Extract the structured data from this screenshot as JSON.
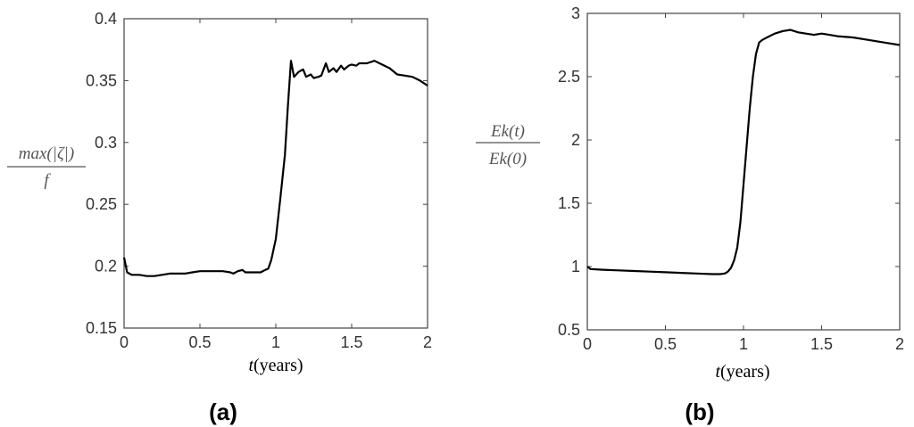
{
  "chart_data": [
    {
      "type": "line",
      "panel_label": "(a)",
      "title": "",
      "xlabel": {
        "symbol": "t",
        "unit": "(years)"
      },
      "ylabel": {
        "numerator": "max(|ζ|)",
        "denominator": "f"
      },
      "xlim": [
        0,
        2
      ],
      "ylim": [
        0.15,
        0.4
      ],
      "xticks": [
        0,
        0.5,
        1,
        1.5,
        2
      ],
      "xtick_labels": [
        "0",
        "0.5",
        "1",
        "1.5",
        "2"
      ],
      "yticks": [
        0.15,
        0.2,
        0.25,
        0.3,
        0.35,
        0.4
      ],
      "ytick_labels": [
        "0.15",
        "0.2",
        "0.25",
        "0.3",
        "0.35",
        "0.4"
      ],
      "grid": false,
      "series": [
        {
          "color": "#000000",
          "x": [
            0.0,
            0.02,
            0.05,
            0.1,
            0.15,
            0.2,
            0.25,
            0.3,
            0.35,
            0.4,
            0.45,
            0.5,
            0.55,
            0.6,
            0.65,
            0.7,
            0.72,
            0.75,
            0.78,
            0.8,
            0.85,
            0.9,
            0.93,
            0.95,
            0.97,
            1.0,
            1.03,
            1.06,
            1.08,
            1.1,
            1.12,
            1.15,
            1.18,
            1.2,
            1.23,
            1.25,
            1.28,
            1.3,
            1.33,
            1.35,
            1.38,
            1.4,
            1.43,
            1.45,
            1.48,
            1.5,
            1.53,
            1.55,
            1.6,
            1.65,
            1.7,
            1.75,
            1.8,
            1.85,
            1.9,
            1.95,
            2.0
          ],
          "y": [
            0.207,
            0.195,
            0.193,
            0.193,
            0.192,
            0.192,
            0.193,
            0.194,
            0.194,
            0.194,
            0.195,
            0.196,
            0.196,
            0.196,
            0.196,
            0.195,
            0.194,
            0.196,
            0.197,
            0.195,
            0.195,
            0.195,
            0.197,
            0.198,
            0.205,
            0.222,
            0.255,
            0.29,
            0.33,
            0.366,
            0.353,
            0.357,
            0.359,
            0.353,
            0.355,
            0.352,
            0.353,
            0.354,
            0.364,
            0.357,
            0.36,
            0.357,
            0.362,
            0.359,
            0.362,
            0.363,
            0.362,
            0.364,
            0.364,
            0.366,
            0.363,
            0.36,
            0.355,
            0.354,
            0.353,
            0.35,
            0.346
          ]
        }
      ]
    },
    {
      "type": "line",
      "panel_label": "(b)",
      "title": "",
      "xlabel": {
        "symbol": "t",
        "unit": "(years)"
      },
      "ylabel": {
        "numerator": "Ek(t)",
        "denominator": "Ek(0)"
      },
      "xlim": [
        0,
        2
      ],
      "ylim": [
        0.5,
        3
      ],
      "xticks": [
        0,
        0.5,
        1,
        1.5,
        2
      ],
      "xtick_labels": [
        "0",
        "0.5",
        "1",
        "1.5",
        "2"
      ],
      "yticks": [
        0.5,
        1,
        1.5,
        2,
        2.5,
        3
      ],
      "ytick_labels": [
        "0.5",
        "1",
        "1.5",
        "2",
        "2.5",
        "3"
      ],
      "grid": false,
      "series": [
        {
          "color": "#000000",
          "x": [
            0.0,
            0.02,
            0.1,
            0.2,
            0.3,
            0.4,
            0.5,
            0.6,
            0.7,
            0.8,
            0.85,
            0.88,
            0.9,
            0.92,
            0.94,
            0.96,
            0.98,
            1.0,
            1.02,
            1.04,
            1.06,
            1.08,
            1.1,
            1.12,
            1.15,
            1.2,
            1.25,
            1.3,
            1.35,
            1.4,
            1.45,
            1.5,
            1.55,
            1.6,
            1.7,
            1.8,
            1.9,
            2.0
          ],
          "y": [
            1.0,
            0.98,
            0.975,
            0.97,
            0.965,
            0.96,
            0.955,
            0.95,
            0.945,
            0.94,
            0.94,
            0.945,
            0.96,
            0.99,
            1.05,
            1.15,
            1.35,
            1.65,
            1.95,
            2.25,
            2.5,
            2.68,
            2.77,
            2.79,
            2.81,
            2.84,
            2.86,
            2.87,
            2.85,
            2.84,
            2.83,
            2.84,
            2.83,
            2.82,
            2.81,
            2.79,
            2.77,
            2.75
          ]
        }
      ]
    }
  ]
}
